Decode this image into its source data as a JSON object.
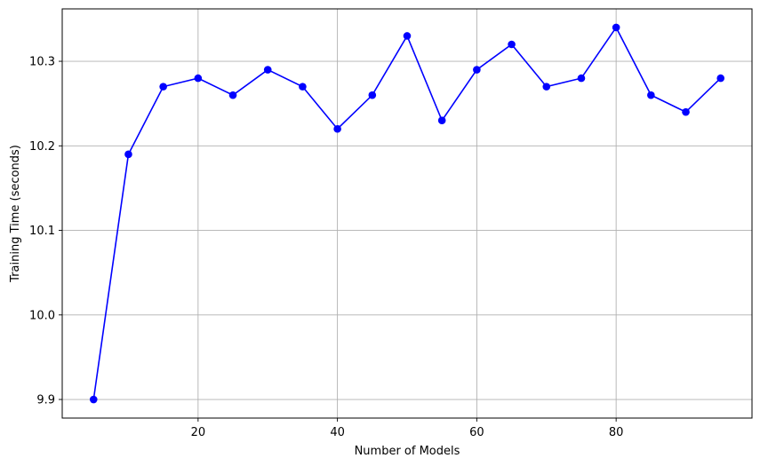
{
  "chart_data": {
    "type": "line",
    "title": "",
    "xlabel": "Number of Models",
    "ylabel": "Training Time (seconds)",
    "xlim": [
      0.5,
      99.5
    ],
    "ylim": [
      9.878,
      10.362
    ],
    "x_ticks": [
      20,
      40,
      60,
      80
    ],
    "y_ticks": [
      9.9,
      10.0,
      10.1,
      10.2,
      10.3
    ],
    "x_tick_labels": [
      "20",
      "40",
      "60",
      "80"
    ],
    "y_tick_labels": [
      "9.9",
      "10.0",
      "10.1",
      "10.2",
      "10.3"
    ],
    "grid": true,
    "series": [
      {
        "color": "#0000ff",
        "marker": "circle",
        "x": [
          5,
          10,
          15,
          20,
          25,
          30,
          35,
          40,
          45,
          50,
          55,
          60,
          65,
          70,
          75,
          80,
          85,
          90,
          95
        ],
        "values": [
          9.9,
          10.19,
          10.27,
          10.28,
          10.26,
          10.29,
          10.27,
          10.22,
          10.26,
          10.33,
          10.23,
          10.29,
          10.32,
          10.27,
          10.28,
          10.34,
          10.26,
          10.24,
          10.28
        ]
      }
    ]
  }
}
